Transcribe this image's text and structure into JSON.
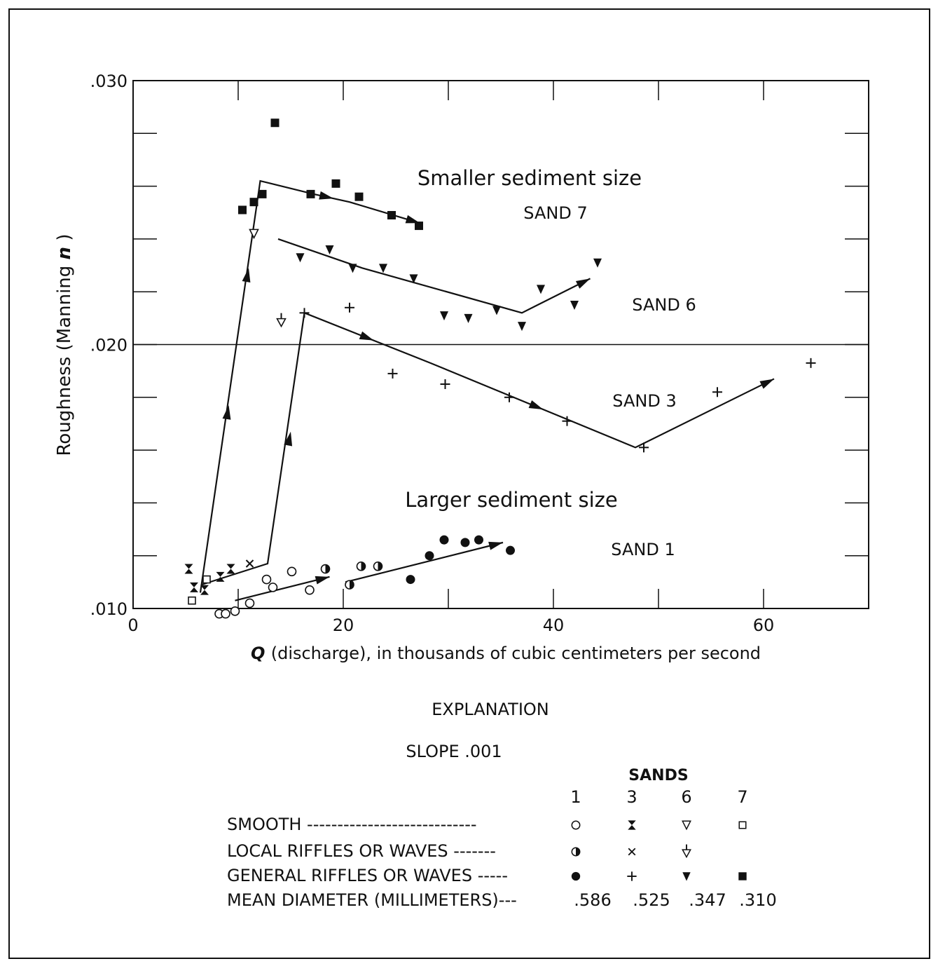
{
  "chart_data": {
    "type": "scatter",
    "xlabel_var": "Q",
    "xlabel_rest": "(discharge), in thousands of cubic centimeters per second",
    "ylabel_main": "Roughness (Manning",
    "ylabel_var": "n",
    "ylabel_close": ")",
    "xlim": [
      0,
      70
    ],
    "ylim": [
      0.01,
      0.03
    ],
    "xticks": [
      0,
      20,
      40,
      60
    ],
    "xtick_labels": [
      "0",
      "20",
      "40",
      "60"
    ],
    "yticks": [
      0.01,
      0.02,
      0.03
    ],
    "ytick_labels": [
      ".010",
      ".020",
      ".030"
    ],
    "grid": false,
    "annotations": {
      "smaller": "Smaller sediment size",
      "larger": "Larger sediment size",
      "sand7": "SAND 7",
      "sand6": "SAND 6",
      "sand3": "SAND 3",
      "sand1": "SAND 1"
    },
    "series": [
      {
        "name": "SAND 1",
        "points": [
          {
            "x": 8.2,
            "y": 0.0098,
            "m": "open-circle"
          },
          {
            "x": 8.8,
            "y": 0.0098,
            "m": "open-circle"
          },
          {
            "x": 9.7,
            "y": 0.0099,
            "m": "open-circle"
          },
          {
            "x": 11.1,
            "y": 0.0102,
            "m": "open-circle"
          },
          {
            "x": 12.7,
            "y": 0.0111,
            "m": "open-circle"
          },
          {
            "x": 13.3,
            "y": 0.0108,
            "m": "open-circle"
          },
          {
            "x": 15.1,
            "y": 0.0114,
            "m": "open-circle"
          },
          {
            "x": 16.8,
            "y": 0.0107,
            "m": "open-circle"
          },
          {
            "x": 18.3,
            "y": 0.0115,
            "m": "half-circle"
          },
          {
            "x": 20.6,
            "y": 0.0109,
            "m": "half-circle"
          },
          {
            "x": 21.7,
            "y": 0.0116,
            "m": "half-circle"
          },
          {
            "x": 23.3,
            "y": 0.0116,
            "m": "half-circle"
          },
          {
            "x": 26.4,
            "y": 0.0111,
            "m": "filled-circle"
          },
          {
            "x": 28.2,
            "y": 0.012,
            "m": "filled-circle"
          },
          {
            "x": 29.6,
            "y": 0.0126,
            "m": "filled-circle"
          },
          {
            "x": 31.6,
            "y": 0.0125,
            "m": "filled-circle"
          },
          {
            "x": 32.9,
            "y": 0.0126,
            "m": "filled-circle"
          },
          {
            "x": 35.9,
            "y": 0.0122,
            "m": "filled-circle"
          }
        ]
      },
      {
        "name": "SAND 3",
        "points": [
          {
            "x": 5.3,
            "y": 0.0115,
            "m": "hourglass"
          },
          {
            "x": 5.8,
            "y": 0.0108,
            "m": "hourglass"
          },
          {
            "x": 6.8,
            "y": 0.0107,
            "m": "hourglass"
          },
          {
            "x": 8.3,
            "y": 0.0112,
            "m": "hourglass"
          },
          {
            "x": 9.3,
            "y": 0.0115,
            "m": "hourglass"
          },
          {
            "x": 11.1,
            "y": 0.0117,
            "m": "x"
          },
          {
            "x": 16.3,
            "y": 0.0212,
            "m": "plus"
          },
          {
            "x": 20.6,
            "y": 0.0214,
            "m": "plus"
          },
          {
            "x": 24.7,
            "y": 0.0189,
            "m": "plus"
          },
          {
            "x": 29.7,
            "y": 0.0185,
            "m": "plus"
          },
          {
            "x": 35.8,
            "y": 0.018,
            "m": "plus"
          },
          {
            "x": 41.3,
            "y": 0.0171,
            "m": "plus"
          },
          {
            "x": 48.6,
            "y": 0.0161,
            "m": "plus"
          },
          {
            "x": 55.6,
            "y": 0.0182,
            "m": "plus"
          },
          {
            "x": 64.5,
            "y": 0.0193,
            "m": "plus"
          }
        ]
      },
      {
        "name": "SAND 6",
        "points": [
          {
            "x": 11.5,
            "y": 0.0242,
            "m": "open-triangle"
          },
          {
            "x": 14.1,
            "y": 0.0209,
            "m": "tick-triangle"
          },
          {
            "x": 15.9,
            "y": 0.0233,
            "m": "filled-triangle"
          },
          {
            "x": 18.7,
            "y": 0.0236,
            "m": "filled-triangle"
          },
          {
            "x": 20.9,
            "y": 0.0229,
            "m": "filled-triangle"
          },
          {
            "x": 23.8,
            "y": 0.0229,
            "m": "filled-triangle"
          },
          {
            "x": 26.7,
            "y": 0.0225,
            "m": "filled-triangle"
          },
          {
            "x": 29.6,
            "y": 0.0211,
            "m": "filled-triangle"
          },
          {
            "x": 31.9,
            "y": 0.021,
            "m": "filled-triangle"
          },
          {
            "x": 34.6,
            "y": 0.0213,
            "m": "filled-triangle"
          },
          {
            "x": 37.0,
            "y": 0.0207,
            "m": "filled-triangle"
          },
          {
            "x": 38.8,
            "y": 0.0221,
            "m": "filled-triangle"
          },
          {
            "x": 42.0,
            "y": 0.0215,
            "m": "filled-triangle"
          },
          {
            "x": 44.2,
            "y": 0.0231,
            "m": "filled-triangle"
          }
        ]
      },
      {
        "name": "SAND 7",
        "points": [
          {
            "x": 5.6,
            "y": 0.0103,
            "m": "open-square"
          },
          {
            "x": 7.0,
            "y": 0.0111,
            "m": "open-square"
          },
          {
            "x": 10.4,
            "y": 0.0251,
            "m": "filled-square"
          },
          {
            "x": 11.5,
            "y": 0.0254,
            "m": "filled-square"
          },
          {
            "x": 12.3,
            "y": 0.0257,
            "m": "filled-square"
          },
          {
            "x": 13.5,
            "y": 0.0284,
            "m": "filled-square"
          },
          {
            "x": 16.9,
            "y": 0.0257,
            "m": "filled-square"
          },
          {
            "x": 19.3,
            "y": 0.0261,
            "m": "filled-square"
          },
          {
            "x": 21.5,
            "y": 0.0256,
            "m": "filled-square"
          },
          {
            "x": 24.6,
            "y": 0.0249,
            "m": "filled-square"
          },
          {
            "x": 27.2,
            "y": 0.0245,
            "m": "filled-square"
          }
        ]
      }
    ],
    "trend_lines": [
      {
        "name": "SAND 7 path",
        "pts": [
          [
            6.4,
            0.0106
          ],
          [
            12.1,
            0.0262
          ],
          [
            17.2,
            0.0257
          ],
          [
            20.6,
            0.0254
          ],
          [
            27.3,
            0.0246
          ]
        ],
        "arrows": [
          [
            2,
            3
          ],
          [
            3,
            4
          ]
        ]
      },
      {
        "name": "SAND 6 path",
        "pts": [
          [
            13.8,
            0.024
          ],
          [
            21.8,
            0.0229
          ],
          [
            37.0,
            0.0212
          ],
          [
            43.5,
            0.0225
          ]
        ],
        "arrows": [
          [
            2,
            3
          ]
        ]
      },
      {
        "name": "SAND 3 path",
        "pts": [
          [
            6.5,
            0.0109
          ],
          [
            12.8,
            0.0117
          ],
          [
            16.3,
            0.0212
          ],
          [
            28.3,
            0.0193
          ],
          [
            47.8,
            0.0161
          ],
          [
            61.0,
            0.0187
          ]
        ],
        "arrows": [
          [
            2,
            3
          ],
          [
            3,
            4
          ],
          [
            4,
            5
          ]
        ]
      },
      {
        "name": "SAND 1 lower",
        "pts": [
          [
            9.7,
            0.0103
          ],
          [
            18.7,
            0.0112
          ]
        ],
        "arrows": [
          [
            0,
            1
          ]
        ]
      },
      {
        "name": "SAND 1 upper",
        "pts": [
          [
            20.2,
            0.011
          ],
          [
            35.2,
            0.0125
          ]
        ],
        "arrows": [
          [
            0,
            1
          ]
        ]
      }
    ],
    "rise_arrows": [
      {
        "from": [
          7.0,
          0.0122
        ],
        "to": [
          9.1,
          0.0177
        ]
      },
      {
        "from": [
          9.3,
          0.0191
        ],
        "to": [
          11.0,
          0.0229
        ]
      },
      {
        "from": [
          12.8,
          0.0122
        ],
        "to": [
          15.0,
          0.0167
        ]
      }
    ],
    "reference_line_y": 0.02
  },
  "legend": {
    "title": "EXPLANATION",
    "slope": "SLOPE .001",
    "sands_header": "SANDS",
    "columns": [
      "1",
      "3",
      "6",
      "7"
    ],
    "rows": [
      {
        "label": "SMOOTH",
        "dashes": "----------------------------",
        "markers": [
          "open-circle",
          "hourglass",
          "open-triangle",
          "open-square"
        ]
      },
      {
        "label": "LOCAL RIFFLES OR WAVES",
        "dashes": "-------",
        "markers": [
          "half-circle",
          "x",
          "tick-triangle",
          ""
        ]
      },
      {
        "label": "GENERAL RIFFLES OR WAVES",
        "dashes": "-----",
        "markers": [
          "filled-circle",
          "plus",
          "filled-triangle",
          "filled-square"
        ]
      }
    ],
    "diameter_row": {
      "label": "MEAN DIAMETER (MILLIMETERS)",
      "dashes": "---",
      "values": [
        ".586",
        ".525",
        ".347",
        ".310"
      ]
    }
  }
}
